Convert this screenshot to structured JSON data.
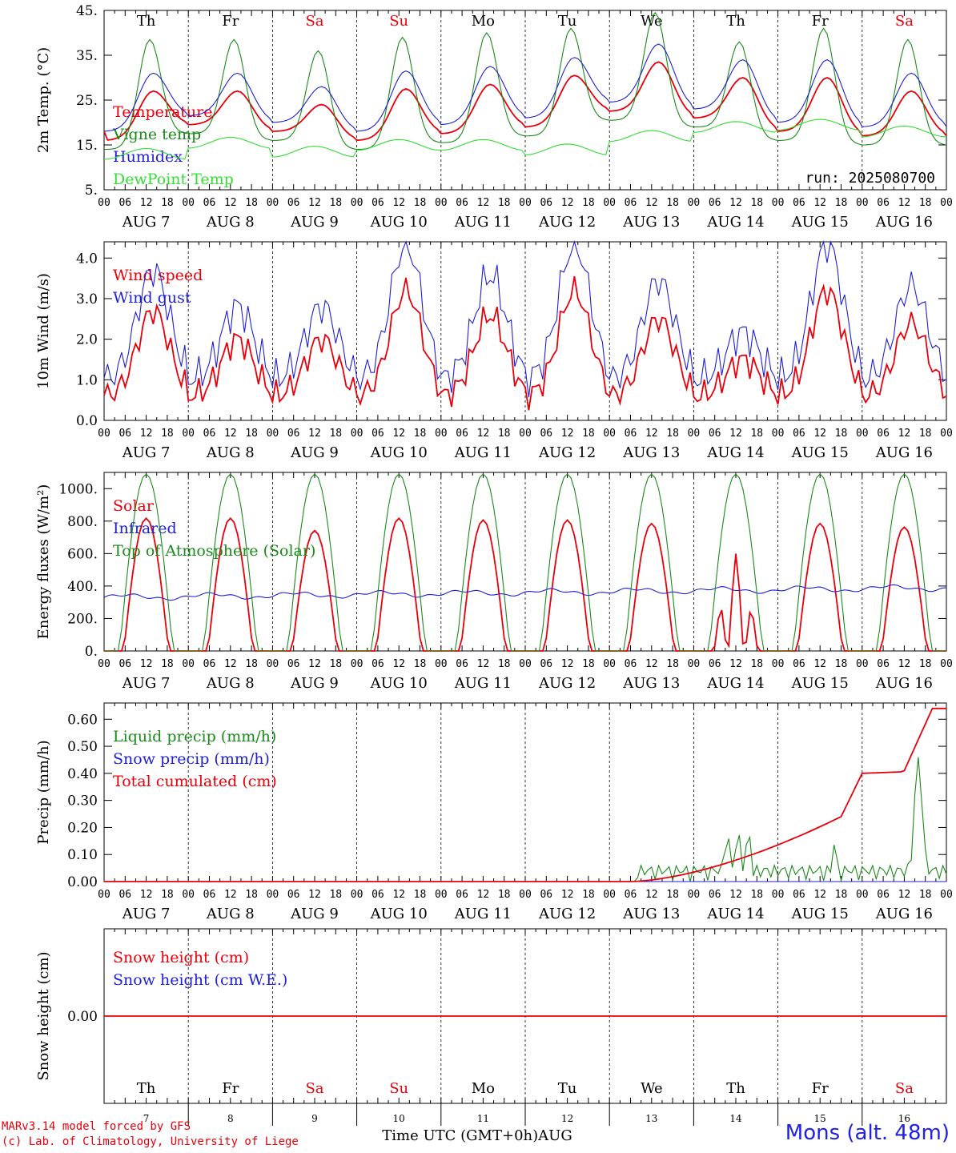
{
  "footer": {
    "credit_line1": "MARv3.14 model forced by GFS",
    "credit_line2": "(c) Lab. of Climatology, University of Liege",
    "xlabel": "Time UTC (GMT+0h)",
    "month": "AUG",
    "station": "Mons (alt. 48m)"
  },
  "colors": {
    "red": "#e8000b",
    "green": "#1a8a1a",
    "blue": "#1f1fd6",
    "light_green": "#33dd33",
    "weekend": "#e8000b",
    "weekday": "#000000"
  },
  "chart_data": [
    {
      "type": "line",
      "id": "temperature",
      "ylabel": "2m Temp. (°C)",
      "yticks": [
        "5.",
        "15.",
        "25.",
        "35.",
        "45."
      ],
      "ylim": [
        5,
        45
      ],
      "days": [
        {
          "name": "Th",
          "date": "7",
          "weekend": false
        },
        {
          "name": "Fr",
          "date": "8",
          "weekend": false
        },
        {
          "name": "Sa",
          "date": "9",
          "weekend": true
        },
        {
          "name": "Su",
          "date": "10",
          "weekend": true
        },
        {
          "name": "Mo",
          "date": "11",
          "weekend": false
        },
        {
          "name": "Tu",
          "date": "12",
          "weekend": false
        },
        {
          "name": "We",
          "date": "13",
          "weekend": false
        },
        {
          "name": "Th",
          "date": "14",
          "weekend": false
        },
        {
          "name": "Fr",
          "date": "15",
          "weekend": false
        },
        {
          "name": "Sa",
          "date": "16",
          "weekend": true
        }
      ],
      "annotation": "run: 2025080700",
      "series": [
        {
          "name": "Temperature",
          "color": "red",
          "shape": "temp"
        },
        {
          "name": "Vigne temp",
          "color": "green",
          "shape": "vigne"
        },
        {
          "name": "Humidex",
          "color": "blue",
          "shape": "humidex"
        },
        {
          "name": "DewPoint Temp",
          "color": "light_green",
          "shape": "dew"
        }
      ]
    },
    {
      "type": "line",
      "id": "wind",
      "ylabel": "10m Wind (m/s)",
      "yticks": [
        "0.0",
        "1.0",
        "2.0",
        "3.0",
        "4.0"
      ],
      "ylim": [
        0,
        4.4
      ],
      "series": [
        {
          "name": "Wind speed",
          "color": "red",
          "shape": "wind"
        },
        {
          "name": "Wind gust",
          "color": "blue",
          "shape": "gust"
        }
      ]
    },
    {
      "type": "line",
      "id": "fluxes",
      "ylabel": "Energy fluxes (W/m²)",
      "yticks": [
        "0.",
        "200.",
        "400.",
        "600.",
        "800.",
        "1000."
      ],
      "ylim": [
        0,
        1100
      ],
      "series": [
        {
          "name": "Solar",
          "color": "red",
          "shape": "solar"
        },
        {
          "name": "Infrared",
          "color": "blue",
          "shape": "ir"
        },
        {
          "name": "Top of Atmosphere (Solar)",
          "color": "green",
          "shape": "toa"
        }
      ]
    },
    {
      "type": "line",
      "id": "precip",
      "ylabel": "Precip (mm/h)",
      "yticks": [
        "0.00",
        "0.10",
        "0.20",
        "0.30",
        "0.40",
        "0.50",
        "0.60"
      ],
      "ylim": [
        0,
        0.66
      ],
      "series": [
        {
          "name": "Liquid precip (mm/h)",
          "color": "green",
          "shape": "liquid"
        },
        {
          "name": "Snow precip (mm/h)",
          "color": "blue",
          "shape": "snowp"
        },
        {
          "name": "Total cumulated (cm)",
          "color": "red",
          "shape": "cumul"
        }
      ]
    },
    {
      "type": "line",
      "id": "snow",
      "ylabel": "Snow height (cm)",
      "yticks": [
        "0.00"
      ],
      "ylim": [
        -1,
        1
      ],
      "series": [
        {
          "name": "Snow height (cm)",
          "color": "red",
          "shape": "zero"
        },
        {
          "name": "Snow height (cm W.E.)",
          "color": "blue",
          "shape": "none"
        }
      ]
    }
  ]
}
